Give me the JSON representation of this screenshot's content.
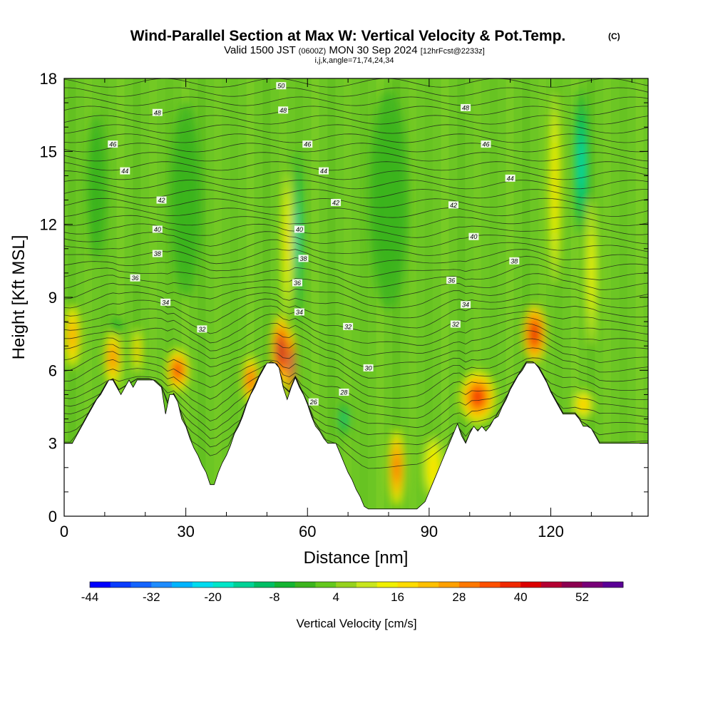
{
  "chart_data": {
    "type": "heatmap",
    "title": "Wind-Parallel Section at Max W: Vertical Velocity & Pot.Temp.",
    "title_mark": "(C)",
    "subtitle_parts": [
      "Valid 1500 JST",
      "(0600Z)",
      "MON 30 Sep 2024",
      "[12hrFcst@2233z]"
    ],
    "subtitle2": "i,j,k,angle=71,74,24,34",
    "xlabel": "Distance [nm]",
    "ylabel": "Height [Kft MSL]",
    "xlim": [
      0,
      144
    ],
    "ylim": [
      0,
      18
    ],
    "xticks": [
      0,
      30,
      60,
      90,
      120
    ],
    "yticks": [
      0,
      3,
      6,
      9,
      12,
      15,
      18
    ],
    "colorbar": {
      "title": "Vertical Velocity [cm/s]",
      "tick_labels": [
        "-44",
        "-32",
        "-20",
        "-8",
        "4",
        "16",
        "28",
        "40",
        "52"
      ],
      "colors": [
        "#0000ff",
        "#0a3cff",
        "#1464ff",
        "#1e8cff",
        "#00b4ff",
        "#00dcf0",
        "#00e6c8",
        "#00d296",
        "#00be64",
        "#14b432",
        "#3cb41e",
        "#64c81e",
        "#96d21e",
        "#c8e61e",
        "#f0f000",
        "#ffdc00",
        "#ffc000",
        "#ffa000",
        "#ff7800",
        "#ff5000",
        "#f02800",
        "#dc0000",
        "#b40032",
        "#8c0050",
        "#780078",
        "#5a0096"
      ]
    },
    "terrain_kft": [
      [
        0,
        3.0
      ],
      [
        2,
        3.0
      ],
      [
        3,
        3.3
      ],
      [
        4,
        3.6
      ],
      [
        5,
        3.9
      ],
      [
        6,
        4.2
      ],
      [
        7,
        4.5
      ],
      [
        8,
        4.8
      ],
      [
        9,
        5.0
      ],
      [
        10,
        5.3
      ],
      [
        11,
        5.6
      ],
      [
        12,
        5.6
      ],
      [
        13,
        5.3
      ],
      [
        14,
        5.0
      ],
      [
        15,
        5.3
      ],
      [
        16,
        5.6
      ],
      [
        17,
        5.3
      ],
      [
        18,
        5.6
      ],
      [
        19,
        5.6
      ],
      [
        22,
        5.6
      ],
      [
        24,
        5.3
      ],
      [
        25,
        4.2
      ],
      [
        26,
        5.0
      ],
      [
        27,
        5.0
      ],
      [
        28,
        4.7
      ],
      [
        29,
        4.0
      ],
      [
        30,
        3.7
      ],
      [
        31,
        3.2
      ],
      [
        32,
        2.8
      ],
      [
        33,
        2.5
      ],
      [
        34,
        2.1
      ],
      [
        35,
        1.8
      ],
      [
        36,
        1.3
      ],
      [
        37,
        1.3
      ],
      [
        38,
        1.8
      ],
      [
        39,
        2.2
      ],
      [
        40,
        2.5
      ],
      [
        41,
        2.9
      ],
      [
        42,
        3.4
      ],
      [
        43,
        3.7
      ],
      [
        44,
        4.1
      ],
      [
        45,
        4.6
      ],
      [
        46,
        5.0
      ],
      [
        47,
        5.3
      ],
      [
        48,
        5.7
      ],
      [
        49,
        6.0
      ],
      [
        50,
        6.3
      ],
      [
        52,
        6.3
      ],
      [
        53,
        6.1
      ],
      [
        54,
        5.3
      ],
      [
        55,
        4.8
      ],
      [
        56,
        5.3
      ],
      [
        57,
        5.7
      ],
      [
        58,
        5.3
      ],
      [
        59,
        5.0
      ],
      [
        60,
        4.6
      ],
      [
        61,
        4.1
      ],
      [
        62,
        3.7
      ],
      [
        63,
        3.5
      ],
      [
        64,
        3.2
      ],
      [
        65,
        3.0
      ],
      [
        66,
        3.0
      ],
      [
        67,
        3.0
      ],
      [
        68,
        2.6
      ],
      [
        69,
        2.2
      ],
      [
        70,
        1.8
      ],
      [
        71,
        1.5
      ],
      [
        72,
        1.1
      ],
      [
        73,
        0.8
      ],
      [
        74,
        0.4
      ],
      [
        75,
        0.3
      ],
      [
        87,
        0.3
      ],
      [
        89,
        0.6
      ],
      [
        90,
        1.0
      ],
      [
        91,
        1.4
      ],
      [
        92,
        1.8
      ],
      [
        93,
        2.2
      ],
      [
        94,
        2.6
      ],
      [
        95,
        3.0
      ],
      [
        96,
        3.4
      ],
      [
        97,
        3.8
      ],
      [
        98,
        3.3
      ],
      [
        99,
        3.0
      ],
      [
        100,
        3.4
      ],
      [
        101,
        3.7
      ],
      [
        102,
        3.5
      ],
      [
        103,
        3.7
      ],
      [
        104,
        3.5
      ],
      [
        105,
        3.7
      ],
      [
        106,
        4.0
      ],
      [
        107,
        4.1
      ],
      [
        108,
        4.5
      ],
      [
        109,
        4.8
      ],
      [
        110,
        5.2
      ],
      [
        111,
        5.5
      ],
      [
        112,
        5.8
      ],
      [
        113,
        6.0
      ],
      [
        114,
        6.3
      ],
      [
        116,
        6.3
      ],
      [
        117,
        6.1
      ],
      [
        118,
        5.8
      ],
      [
        119,
        5.5
      ],
      [
        120,
        5.1
      ],
      [
        121,
        4.8
      ],
      [
        122,
        4.5
      ],
      [
        123,
        4.2
      ],
      [
        126,
        4.2
      ],
      [
        127,
        4.0
      ],
      [
        128,
        3.7
      ],
      [
        129,
        3.7
      ],
      [
        130,
        3.6
      ],
      [
        131,
        3.3
      ],
      [
        132,
        3.0
      ],
      [
        133,
        3.0
      ],
      [
        134,
        3.0
      ],
      [
        136,
        3.0
      ],
      [
        144,
        3.0
      ]
    ],
    "w_cells": [
      {
        "x": 2,
        "y": 7.4,
        "rx": 2.0,
        "ry": 1.3,
        "w": 22
      },
      {
        "x": 12,
        "y": 6.5,
        "rx": 2.0,
        "ry": 1.2,
        "w": 28
      },
      {
        "x": 18,
        "y": 6.8,
        "rx": 1.2,
        "ry": 1.0,
        "w": 20
      },
      {
        "x": 28,
        "y": 6.0,
        "rx": 2.8,
        "ry": 0.9,
        "w": 34
      },
      {
        "x": 46,
        "y": 5.6,
        "rx": 2.0,
        "ry": 1.0,
        "w": 32
      },
      {
        "x": 53.5,
        "y": 6.8,
        "rx": 2.5,
        "ry": 1.5,
        "w": 44
      },
      {
        "x": 56,
        "y": 6.2,
        "rx": 1.1,
        "ry": 1.5,
        "w": 52
      },
      {
        "x": 82,
        "y": 2.0,
        "rx": 2.0,
        "ry": 1.6,
        "w": 30
      },
      {
        "x": 91,
        "y": 2.0,
        "rx": 2.5,
        "ry": 1.3,
        "w": 14
      },
      {
        "x": 102,
        "y": 4.9,
        "rx": 4.5,
        "ry": 1.1,
        "w": 34
      },
      {
        "x": 116,
        "y": 7.5,
        "rx": 2.8,
        "ry": 1.2,
        "w": 38
      },
      {
        "x": 128,
        "y": 4.6,
        "rx": 2.5,
        "ry": 0.6,
        "w": 20
      },
      {
        "x": 55,
        "y": 11.2,
        "rx": 1.3,
        "ry": 3.0,
        "w": 14
      },
      {
        "x": 121,
        "y": 13.5,
        "rx": 1.5,
        "ry": 4.0,
        "w": 14
      },
      {
        "x": 130,
        "y": 10.0,
        "rx": 1.5,
        "ry": 3.0,
        "w": 12
      },
      {
        "x": 57.5,
        "y": 11.5,
        "rx": 0.9,
        "ry": 3.5,
        "w": -26
      },
      {
        "x": 127.5,
        "y": 14.5,
        "rx": 1.6,
        "ry": 3.0,
        "w": -22
      },
      {
        "x": 69,
        "y": 4.0,
        "rx": 1.2,
        "ry": 0.8,
        "w": -18
      },
      {
        "x": 13,
        "y": 7.8,
        "rx": 1.5,
        "ry": 0.4,
        "w": -12
      },
      {
        "x": 30,
        "y": 13.0,
        "rx": 4.0,
        "ry": 4.0,
        "w": -6
      },
      {
        "x": 80,
        "y": 13.0,
        "rx": 5.0,
        "ry": 4.5,
        "w": -6
      },
      {
        "x": 8,
        "y": 13.5,
        "rx": 2.5,
        "ry": 3.0,
        "w": -8
      }
    ],
    "contour_labels": [
      {
        "text": "50",
        "x": 53.5,
        "y": 17.7
      },
      {
        "text": "48",
        "x": 23,
        "y": 16.6
      },
      {
        "text": "48",
        "x": 54,
        "y": 16.7
      },
      {
        "text": "48",
        "x": 99,
        "y": 16.8
      },
      {
        "text": "46",
        "x": 12,
        "y": 15.3
      },
      {
        "text": "46",
        "x": 60,
        "y": 15.3
      },
      {
        "text": "46",
        "x": 104,
        "y": 15.3
      },
      {
        "text": "44",
        "x": 15,
        "y": 14.2
      },
      {
        "text": "44",
        "x": 64,
        "y": 14.2
      },
      {
        "text": "44",
        "x": 110,
        "y": 13.9
      },
      {
        "text": "42",
        "x": 24,
        "y": 13.0
      },
      {
        "text": "42",
        "x": 67,
        "y": 12.9
      },
      {
        "text": "42",
        "x": 96,
        "y": 12.8
      },
      {
        "text": "40",
        "x": 23,
        "y": 11.8
      },
      {
        "text": "40",
        "x": 58,
        "y": 11.8
      },
      {
        "text": "40",
        "x": 101,
        "y": 11.5
      },
      {
        "text": "38",
        "x": 23,
        "y": 10.8
      },
      {
        "text": "38",
        "x": 59,
        "y": 10.6
      },
      {
        "text": "38",
        "x": 111,
        "y": 10.5
      },
      {
        "text": "36",
        "x": 17.5,
        "y": 9.8
      },
      {
        "text": "36",
        "x": 57.5,
        "y": 9.6
      },
      {
        "text": "36",
        "x": 95.5,
        "y": 9.7
      },
      {
        "text": "34",
        "x": 25,
        "y": 8.8
      },
      {
        "text": "34",
        "x": 58,
        "y": 8.4
      },
      {
        "text": "34",
        "x": 99,
        "y": 8.7
      },
      {
        "text": "32",
        "x": 34,
        "y": 7.7
      },
      {
        "text": "32",
        "x": 70,
        "y": 7.8
      },
      {
        "text": "32",
        "x": 96.5,
        "y": 7.9
      },
      {
        "text": "30",
        "x": 75,
        "y": 6.1
      },
      {
        "text": "28",
        "x": 69,
        "y": 5.1
      },
      {
        "text": "26",
        "x": 61.5,
        "y": 4.7
      }
    ]
  }
}
